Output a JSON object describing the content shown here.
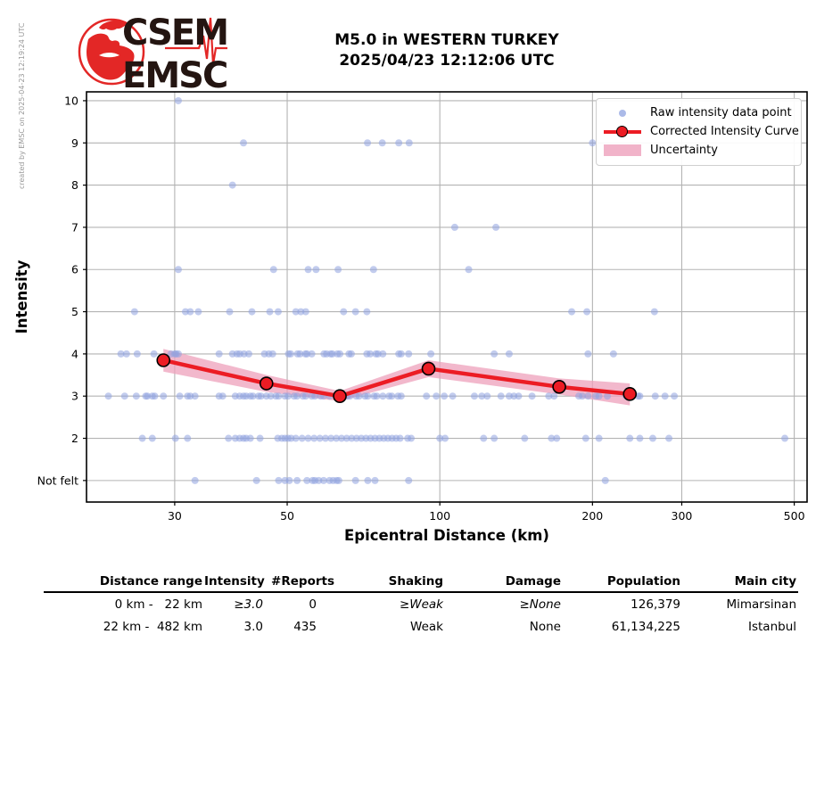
{
  "credit": "created by EMSC on 2025-04-23 12:19:24 UTC",
  "logo": {
    "top_text": "CSEM",
    "bottom_text": "EMSC"
  },
  "title": {
    "line1": "M5.0 in WESTERN TURKEY",
    "line2": "2025/04/23 12:12:06 UTC"
  },
  "colors": {
    "raw_point": "#8fa3e0",
    "curve": "#ec1c24",
    "curve_marker_fill": "#ec1c24",
    "curve_marker_edge": "#000000",
    "uncertainty": "#eda0bb",
    "grid": "#b3b3b3",
    "axis": "#000000",
    "logo_red": "#e32726",
    "logo_text": "#241511"
  },
  "chart_data": {
    "type": "scatter",
    "title": "M5.0 in WESTERN TURKEY 2025/04/23 12:12:06 UTC",
    "xlabel": "Epicentral Distance (km)",
    "ylabel": "Intensity",
    "x_scale": "log",
    "x_ticks": [
      30,
      50,
      100,
      200,
      300,
      500
    ],
    "x_range": [
      20.1,
      530
    ],
    "y_tick_values": [
      10,
      9,
      8,
      7,
      6,
      5,
      4,
      3,
      2,
      1
    ],
    "y_tick_labels": [
      "10",
      "9",
      "8",
      "7",
      "6",
      "5",
      "4",
      "3",
      "2",
      "Not felt"
    ],
    "y_range": [
      0.49,
      10.21
    ],
    "grid": true,
    "legend_position": "upper right",
    "legend": [
      {
        "label": "Raw intensity data point",
        "marker": "dot"
      },
      {
        "label": "Corrected Intensity Curve",
        "marker": "line-marker"
      },
      {
        "label": "Uncertainty",
        "marker": "band"
      }
    ],
    "series": [
      {
        "name": "Uncertainty",
        "type": "band",
        "x": [
          28.5,
          45.5,
          63.5,
          95,
          172,
          237
        ],
        "upper": [
          4.12,
          3.5,
          3.12,
          3.85,
          3.42,
          3.3
        ],
        "lower": [
          3.58,
          3.1,
          2.88,
          3.45,
          3.04,
          2.78
        ]
      },
      {
        "name": "Raw intensity data point",
        "type": "scatter",
        "points": [
          [
            30.5,
            10
          ],
          [
            41,
            9
          ],
          [
            72,
            9
          ],
          [
            77,
            9
          ],
          [
            83,
            9
          ],
          [
            87,
            9
          ],
          [
            200,
            9
          ],
          [
            39,
            8
          ],
          [
            107,
            7
          ],
          [
            129,
            7
          ],
          [
            30.5,
            6
          ],
          [
            47,
            6
          ],
          [
            55,
            6
          ],
          [
            57,
            6
          ],
          [
            63,
            6
          ],
          [
            74,
            6
          ],
          [
            114,
            6
          ],
          [
            25,
            5
          ],
          [
            31.5,
            5
          ],
          [
            32.2,
            5
          ],
          [
            33.4,
            5
          ],
          [
            38.5,
            5
          ],
          [
            42.6,
            5
          ],
          [
            46.2,
            5
          ],
          [
            48,
            5
          ],
          [
            52,
            5
          ],
          [
            53.2,
            5
          ],
          [
            54.4,
            5
          ],
          [
            64.6,
            5
          ],
          [
            68.2,
            5
          ],
          [
            71.8,
            5
          ],
          [
            182,
            5
          ],
          [
            195,
            5
          ],
          [
            265,
            5
          ],
          [
            23.5,
            4
          ],
          [
            24.1,
            4
          ],
          [
            25.3,
            4
          ],
          [
            27.3,
            4
          ],
          [
            29.5,
            4
          ],
          [
            30,
            4
          ],
          [
            30.2,
            4
          ],
          [
            30.5,
            4
          ],
          [
            36.7,
            4
          ],
          [
            39,
            4
          ],
          [
            39.8,
            4
          ],
          [
            40.3,
            4
          ],
          [
            41.1,
            4
          ],
          [
            42,
            4
          ],
          [
            45.1,
            4
          ],
          [
            46,
            4
          ],
          [
            46.8,
            4
          ],
          [
            50.3,
            4
          ],
          [
            50.8,
            4
          ],
          [
            52.4,
            4
          ],
          [
            53,
            4
          ],
          [
            54.3,
            4
          ],
          [
            54.7,
            4
          ],
          [
            55.9,
            4
          ],
          [
            59.1,
            4
          ],
          [
            59.8,
            4
          ],
          [
            60.9,
            4
          ],
          [
            61.4,
            4
          ],
          [
            62.8,
            4
          ],
          [
            63.5,
            4
          ],
          [
            66.2,
            4
          ],
          [
            66.9,
            4
          ],
          [
            71.8,
            4
          ],
          [
            72.9,
            4
          ],
          [
            74.8,
            4
          ],
          [
            75.5,
            4
          ],
          [
            77.2,
            4
          ],
          [
            83,
            4
          ],
          [
            83.9,
            4
          ],
          [
            86.8,
            4
          ],
          [
            96,
            4
          ],
          [
            128,
            4
          ],
          [
            137,
            4
          ],
          [
            196,
            4
          ],
          [
            220,
            4
          ],
          [
            22.2,
            3
          ],
          [
            23.9,
            3
          ],
          [
            25.2,
            3
          ],
          [
            26.3,
            3
          ],
          [
            26.5,
            3
          ],
          [
            27.1,
            3
          ],
          [
            27.4,
            3
          ],
          [
            28.5,
            3
          ],
          [
            30.7,
            3
          ],
          [
            31.8,
            3
          ],
          [
            32.2,
            3
          ],
          [
            32.9,
            3
          ],
          [
            36.7,
            3
          ],
          [
            37.3,
            3
          ],
          [
            39.5,
            3
          ],
          [
            40.3,
            3
          ],
          [
            41,
            3
          ],
          [
            41.5,
            3
          ],
          [
            42.3,
            3
          ],
          [
            42.8,
            3
          ],
          [
            43.9,
            3
          ],
          [
            44.4,
            3
          ],
          [
            45.5,
            3
          ],
          [
            46.4,
            3
          ],
          [
            47.5,
            3
          ],
          [
            48.1,
            3
          ],
          [
            49.5,
            3
          ],
          [
            50.2,
            3
          ],
          [
            51.6,
            3
          ],
          [
            52.3,
            3
          ],
          [
            53.7,
            3
          ],
          [
            54.4,
            3
          ],
          [
            55.9,
            3
          ],
          [
            56.7,
            3
          ],
          [
            58.2,
            3
          ],
          [
            59,
            3
          ],
          [
            60.6,
            3
          ],
          [
            65.7,
            3
          ],
          [
            66.5,
            3
          ],
          [
            68.4,
            3
          ],
          [
            69.3,
            3
          ],
          [
            71.2,
            3
          ],
          [
            72.1,
            3
          ],
          [
            74.2,
            3
          ],
          [
            75.1,
            3
          ],
          [
            77.2,
            3
          ],
          [
            79.4,
            3
          ],
          [
            80.4,
            3
          ],
          [
            82.7,
            3
          ],
          [
            83.9,
            3
          ],
          [
            94.1,
            3
          ],
          [
            98.4,
            3
          ],
          [
            102,
            3
          ],
          [
            106,
            3
          ],
          [
            117,
            3
          ],
          [
            121,
            3
          ],
          [
            124,
            3
          ],
          [
            132,
            3
          ],
          [
            137,
            3
          ],
          [
            140,
            3
          ],
          [
            143,
            3
          ],
          [
            152,
            3
          ],
          [
            164,
            3
          ],
          [
            168,
            3
          ],
          [
            188,
            3
          ],
          [
            191,
            3
          ],
          [
            196,
            3
          ],
          [
            203,
            3
          ],
          [
            206,
            3
          ],
          [
            214,
            3
          ],
          [
            233,
            3
          ],
          [
            239,
            3
          ],
          [
            246,
            3
          ],
          [
            248,
            3
          ],
          [
            266,
            3
          ],
          [
            278,
            3
          ],
          [
            290,
            3
          ],
          [
            25.9,
            2
          ],
          [
            27.1,
            2
          ],
          [
            30.1,
            2
          ],
          [
            31.8,
            2
          ],
          [
            38.3,
            2
          ],
          [
            39.5,
            2
          ],
          [
            40.3,
            2
          ],
          [
            41,
            2
          ],
          [
            41.5,
            2
          ],
          [
            42.3,
            2
          ],
          [
            44.2,
            2
          ],
          [
            47.9,
            2
          ],
          [
            48.8,
            2
          ],
          [
            49.5,
            2
          ],
          [
            50.2,
            2
          ],
          [
            50.9,
            2
          ],
          [
            52,
            2
          ],
          [
            53.5,
            2
          ],
          [
            55,
            2
          ],
          [
            56.5,
            2
          ],
          [
            58,
            2
          ],
          [
            59.5,
            2
          ],
          [
            61,
            2
          ],
          [
            62.5,
            2
          ],
          [
            64,
            2
          ],
          [
            65.5,
            2
          ],
          [
            67,
            2
          ],
          [
            68.5,
            2
          ],
          [
            70,
            2
          ],
          [
            71.5,
            2
          ],
          [
            73,
            2
          ],
          [
            74.5,
            2
          ],
          [
            76,
            2
          ],
          [
            77.5,
            2
          ],
          [
            79,
            2
          ],
          [
            80.5,
            2
          ],
          [
            82,
            2
          ],
          [
            83.5,
            2
          ],
          [
            86.4,
            2
          ],
          [
            87.8,
            2
          ],
          [
            100,
            2
          ],
          [
            102.4,
            2
          ],
          [
            122,
            2
          ],
          [
            128,
            2
          ],
          [
            147,
            2
          ],
          [
            166,
            2
          ],
          [
            170,
            2
          ],
          [
            194,
            2
          ],
          [
            206,
            2
          ],
          [
            237,
            2
          ],
          [
            248,
            2
          ],
          [
            263,
            2
          ],
          [
            283,
            2
          ],
          [
            479,
            2
          ],
          [
            32.9,
            1
          ],
          [
            43.5,
            1
          ],
          [
            48.1,
            1
          ],
          [
            49.5,
            1
          ],
          [
            50.5,
            1
          ],
          [
            52.3,
            1
          ],
          [
            54.7,
            1
          ],
          [
            56.1,
            1
          ],
          [
            56.7,
            1
          ],
          [
            57.7,
            1
          ],
          [
            59,
            1
          ],
          [
            60.6,
            1
          ],
          [
            61.6,
            1
          ],
          [
            62.6,
            1
          ],
          [
            63.2,
            1
          ],
          [
            68.2,
            1
          ],
          [
            72.1,
            1
          ],
          [
            74.5,
            1
          ],
          [
            86.8,
            1
          ],
          [
            212,
            1
          ]
        ]
      },
      {
        "name": "Corrected Intensity Curve",
        "type": "line",
        "x": [
          28.5,
          45.5,
          63.5,
          95,
          172,
          237
        ],
        "y": [
          3.85,
          3.3,
          3.0,
          3.65,
          3.22,
          3.05
        ]
      }
    ]
  },
  "table": {
    "headers": [
      "Distance range",
      "Intensity",
      "#Reports",
      "Shaking",
      "Damage",
      "Population",
      "Main city"
    ],
    "rows": [
      {
        "cells": [
          "0 km -   22 km",
          "≥3.0",
          "0",
          "≥Weak",
          "≥None",
          "126,379",
          "Mimarsinan"
        ]
      },
      {
        "cells": [
          "22 km -  482 km",
          "3.0",
          "435",
          "Weak",
          "None",
          "61,134,225",
          "Istanbul"
        ]
      }
    ]
  }
}
